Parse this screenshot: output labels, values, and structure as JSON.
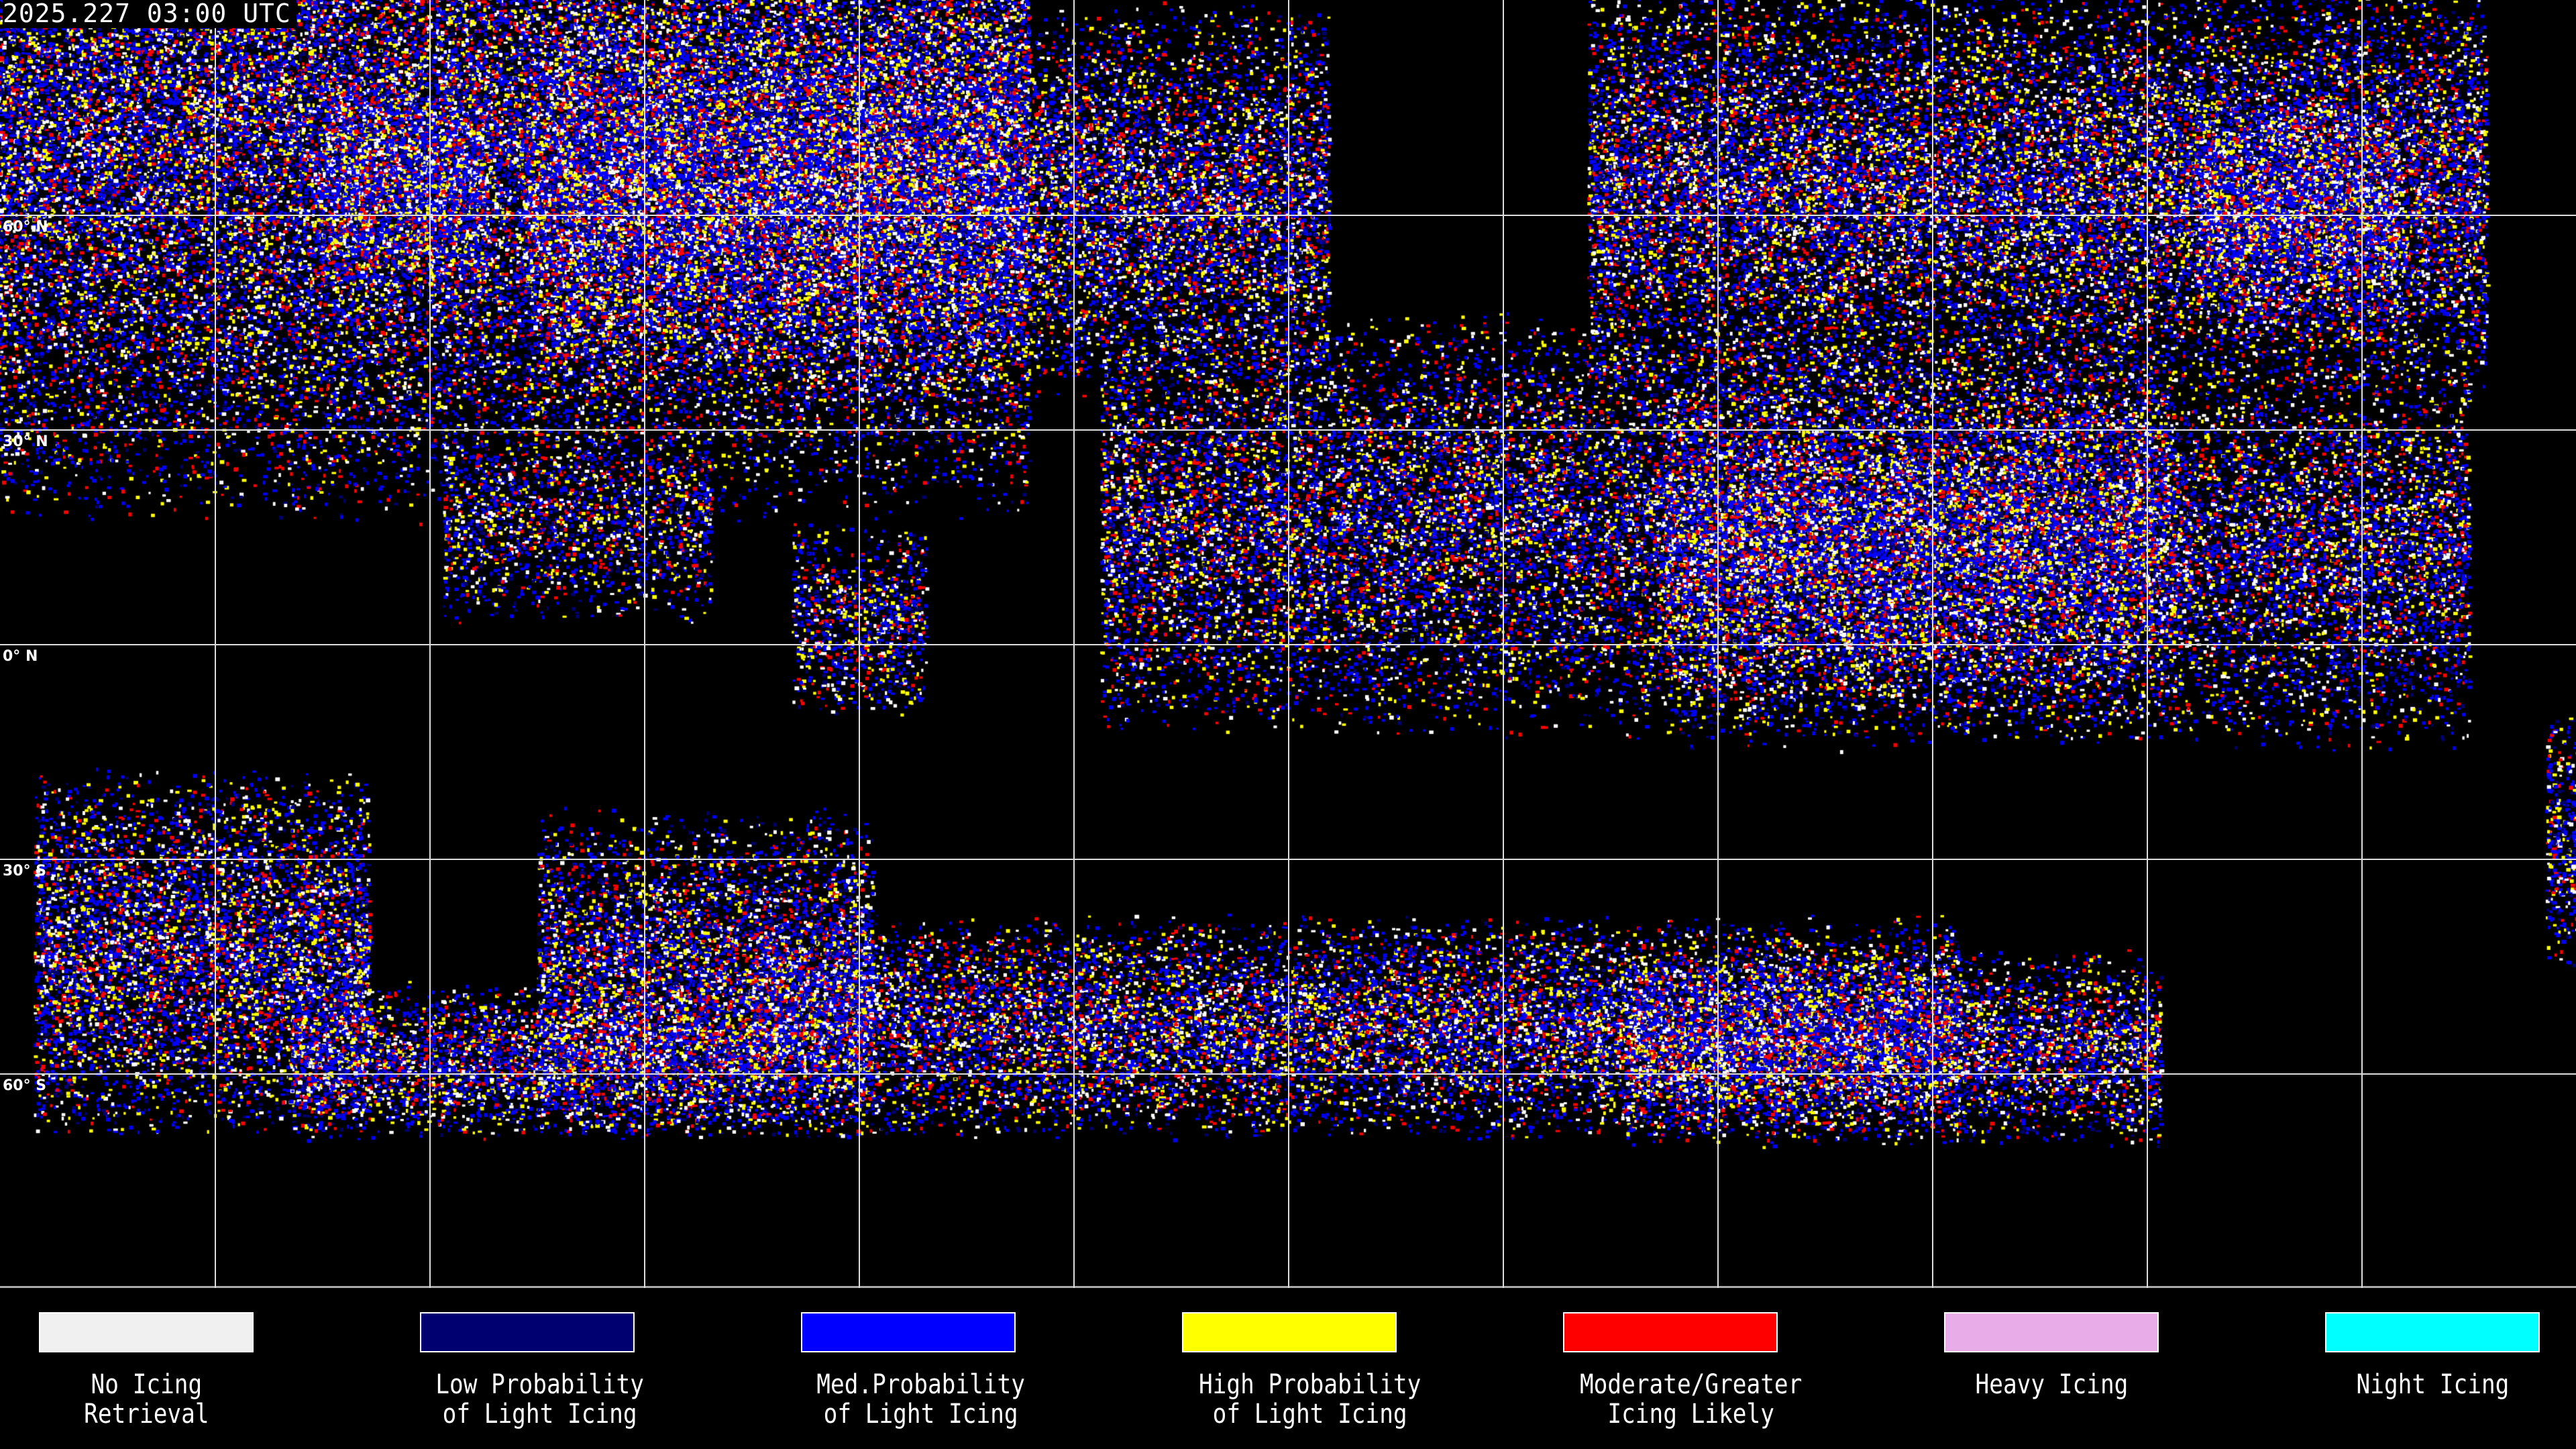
{
  "header": {
    "timestamp": "2025.227 03:00 UTC"
  },
  "map": {
    "projection": "equirectangular",
    "grid_spacing_degrees": 30,
    "latitude_labels": [
      "60° N",
      "30° N",
      "0° N",
      "30° S",
      "60° S"
    ]
  },
  "legend": [
    {
      "line1": "No Icing",
      "line2": "Retrieval",
      "color": "#f0f0f0"
    },
    {
      "line1": "Low Probability",
      "line2": "of Light Icing",
      "color": "#000070"
    },
    {
      "line1": "Med.Probability",
      "line2": "of Light Icing",
      "color": "#0000ff"
    },
    {
      "line1": "High Probability",
      "line2": "of Light Icing",
      "color": "#ffff00"
    },
    {
      "line1": "Moderate/Greater",
      "line2": "Icing Likely",
      "color": "#ff0000"
    },
    {
      "line1": "Heavy Icing",
      "line2": "",
      "color": "#e8ade8"
    },
    {
      "line1": "Night Icing",
      "line2": "",
      "color": "#00ffff"
    }
  ]
}
